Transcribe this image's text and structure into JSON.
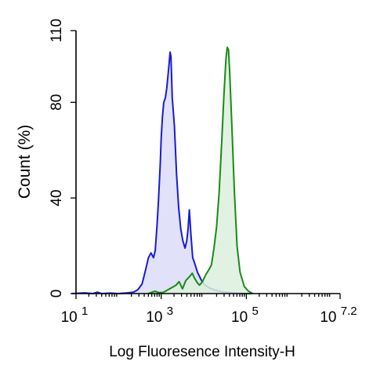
{
  "chart_data": {
    "type": "area",
    "title": "",
    "xlabel": "Log Fluoresence Intensity-H",
    "ylabel": "Count  (%)",
    "x_scale": "log10",
    "xlim_log10": [
      1,
      7.2
    ],
    "ylim": [
      0,
      110
    ],
    "x_ticks": [
      {
        "log10": 1,
        "base": "10",
        "exp": "1"
      },
      {
        "log10": 3,
        "base": "10",
        "exp": "3"
      },
      {
        "log10": 5,
        "base": "10",
        "exp": "5"
      },
      {
        "log10": 7.2,
        "base": "10",
        "exp": "7.2"
      }
    ],
    "y_ticks": [
      {
        "value": 0,
        "label": "0"
      },
      {
        "value": 40,
        "label": "40"
      },
      {
        "value": 80,
        "label": "80"
      },
      {
        "value": 110,
        "label": "110"
      }
    ],
    "grid": false,
    "legend": "none",
    "series": [
      {
        "color": "#1a1ad4",
        "fill": "#dcdcf8",
        "points_log10x_y": [
          [
            0.9,
            0
          ],
          [
            1.2,
            0.3
          ],
          [
            1.4,
            0
          ],
          [
            1.5,
            0.6
          ],
          [
            1.6,
            0
          ],
          [
            1.8,
            0.2
          ],
          [
            2.0,
            0
          ],
          [
            2.2,
            0.3
          ],
          [
            2.35,
            0.6
          ],
          [
            2.45,
            1.6
          ],
          [
            2.55,
            4
          ],
          [
            2.62,
            9
          ],
          [
            2.7,
            15
          ],
          [
            2.76,
            17
          ],
          [
            2.82,
            15
          ],
          [
            2.86,
            18
          ],
          [
            2.9,
            28
          ],
          [
            2.94,
            40
          ],
          [
            2.98,
            55
          ],
          [
            3.0,
            65
          ],
          [
            3.03,
            74
          ],
          [
            3.06,
            80
          ],
          [
            3.1,
            82
          ],
          [
            3.13,
            86
          ],
          [
            3.17,
            93
          ],
          [
            3.21,
            101
          ],
          [
            3.23,
            99
          ],
          [
            3.26,
            82
          ],
          [
            3.31,
            70
          ],
          [
            3.36,
            50
          ],
          [
            3.41,
            36
          ],
          [
            3.46,
            27
          ],
          [
            3.51,
            22
          ],
          [
            3.56,
            19
          ],
          [
            3.6,
            22
          ],
          [
            3.63,
            27
          ],
          [
            3.66,
            35
          ],
          [
            3.7,
            24
          ],
          [
            3.74,
            15
          ],
          [
            3.78,
            13
          ],
          [
            3.85,
            9
          ],
          [
            3.93,
            6
          ],
          [
            4.0,
            4
          ],
          [
            4.12,
            2.5
          ],
          [
            4.25,
            1.5
          ],
          [
            4.45,
            0.7
          ],
          [
            4.7,
            0.3
          ],
          [
            4.9,
            0.1
          ],
          [
            5.1,
            0
          ]
        ]
      },
      {
        "color": "#1a8a1a",
        "fill": "#ddf0dd",
        "points_log10x_y": [
          [
            2.7,
            0
          ],
          [
            2.85,
            1
          ],
          [
            2.95,
            0.4
          ],
          [
            3.05,
            0.5
          ],
          [
            3.15,
            1.5
          ],
          [
            3.25,
            2.5
          ],
          [
            3.35,
            3.5
          ],
          [
            3.42,
            5
          ],
          [
            3.5,
            2
          ],
          [
            3.58,
            5.5
          ],
          [
            3.66,
            7
          ],
          [
            3.73,
            8.5
          ],
          [
            3.78,
            6.5
          ],
          [
            3.85,
            4.5
          ],
          [
            3.9,
            3.5
          ],
          [
            3.97,
            5
          ],
          [
            4.05,
            8
          ],
          [
            4.12,
            10
          ],
          [
            4.18,
            12
          ],
          [
            4.24,
            19
          ],
          [
            4.3,
            28
          ],
          [
            4.36,
            42
          ],
          [
            4.42,
            63
          ],
          [
            4.47,
            82
          ],
          [
            4.52,
            98
          ],
          [
            4.55,
            103
          ],
          [
            4.58,
            102
          ],
          [
            4.61,
            92
          ],
          [
            4.66,
            70
          ],
          [
            4.72,
            42
          ],
          [
            4.78,
            20
          ],
          [
            4.85,
            9
          ],
          [
            4.95,
            3
          ],
          [
            5.05,
            1
          ],
          [
            5.15,
            0
          ]
        ]
      }
    ]
  }
}
